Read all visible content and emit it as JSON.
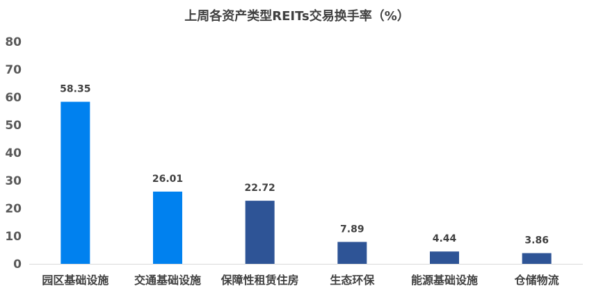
{
  "chart_data": {
    "type": "bar",
    "title": "上周各资产类型REITs交易换手率（%）",
    "categories": [
      "园区基础设施",
      "交通基础设施",
      "保障性租赁住房",
      "生态环保",
      "能源基础设施",
      "仓储物流"
    ],
    "values": [
      58.35,
      26.01,
      22.72,
      7.89,
      4.44,
      3.86
    ],
    "data_labels": [
      "58.35",
      "26.01",
      "22.72",
      "7.89",
      "4.44",
      "3.86"
    ],
    "bar_colors": [
      "#0081EF",
      "#0081EF",
      "#2E5496",
      "#2E5496",
      "#2E5496",
      "#2E5496"
    ],
    "ylim": [
      0,
      80
    ],
    "yticks": [
      0,
      10,
      20,
      30,
      40,
      50,
      60,
      70,
      80
    ],
    "grid": false,
    "legend": "none"
  }
}
